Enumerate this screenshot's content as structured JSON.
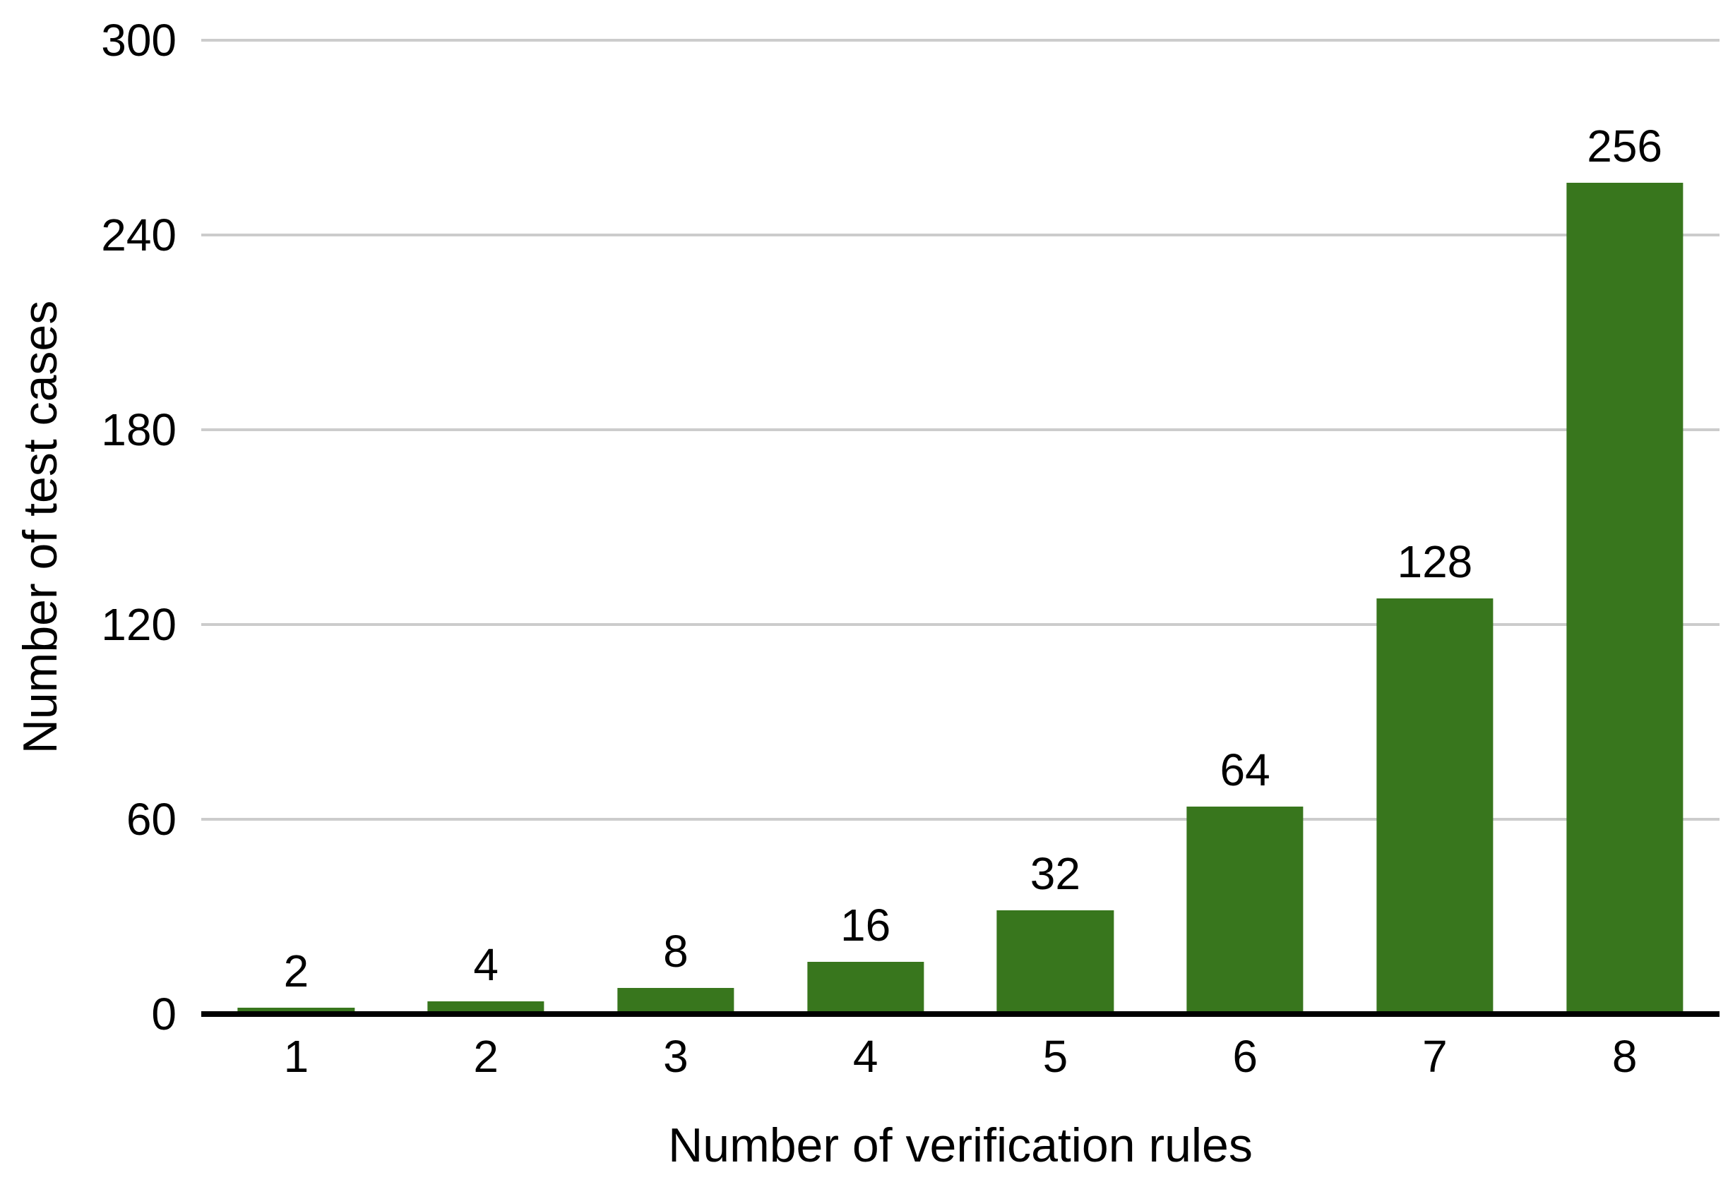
{
  "chart_data": {
    "type": "bar",
    "categories": [
      "1",
      "2",
      "3",
      "4",
      "5",
      "6",
      "7",
      "8"
    ],
    "values": [
      2,
      4,
      8,
      16,
      32,
      64,
      128,
      256
    ],
    "show_data_labels": true,
    "xlabel": "Number of verification rules",
    "ylabel": "Number of test cases",
    "ylim": [
      0,
      300
    ],
    "yticks": [
      0,
      60,
      120,
      180,
      240,
      300
    ],
    "grid": true,
    "legend_position": "none",
    "colors": {
      "bar": "#38761d",
      "gridline": "#cccccc",
      "axis_line": "#000000",
      "text": "#000000",
      "background": "#ffffff"
    }
  }
}
